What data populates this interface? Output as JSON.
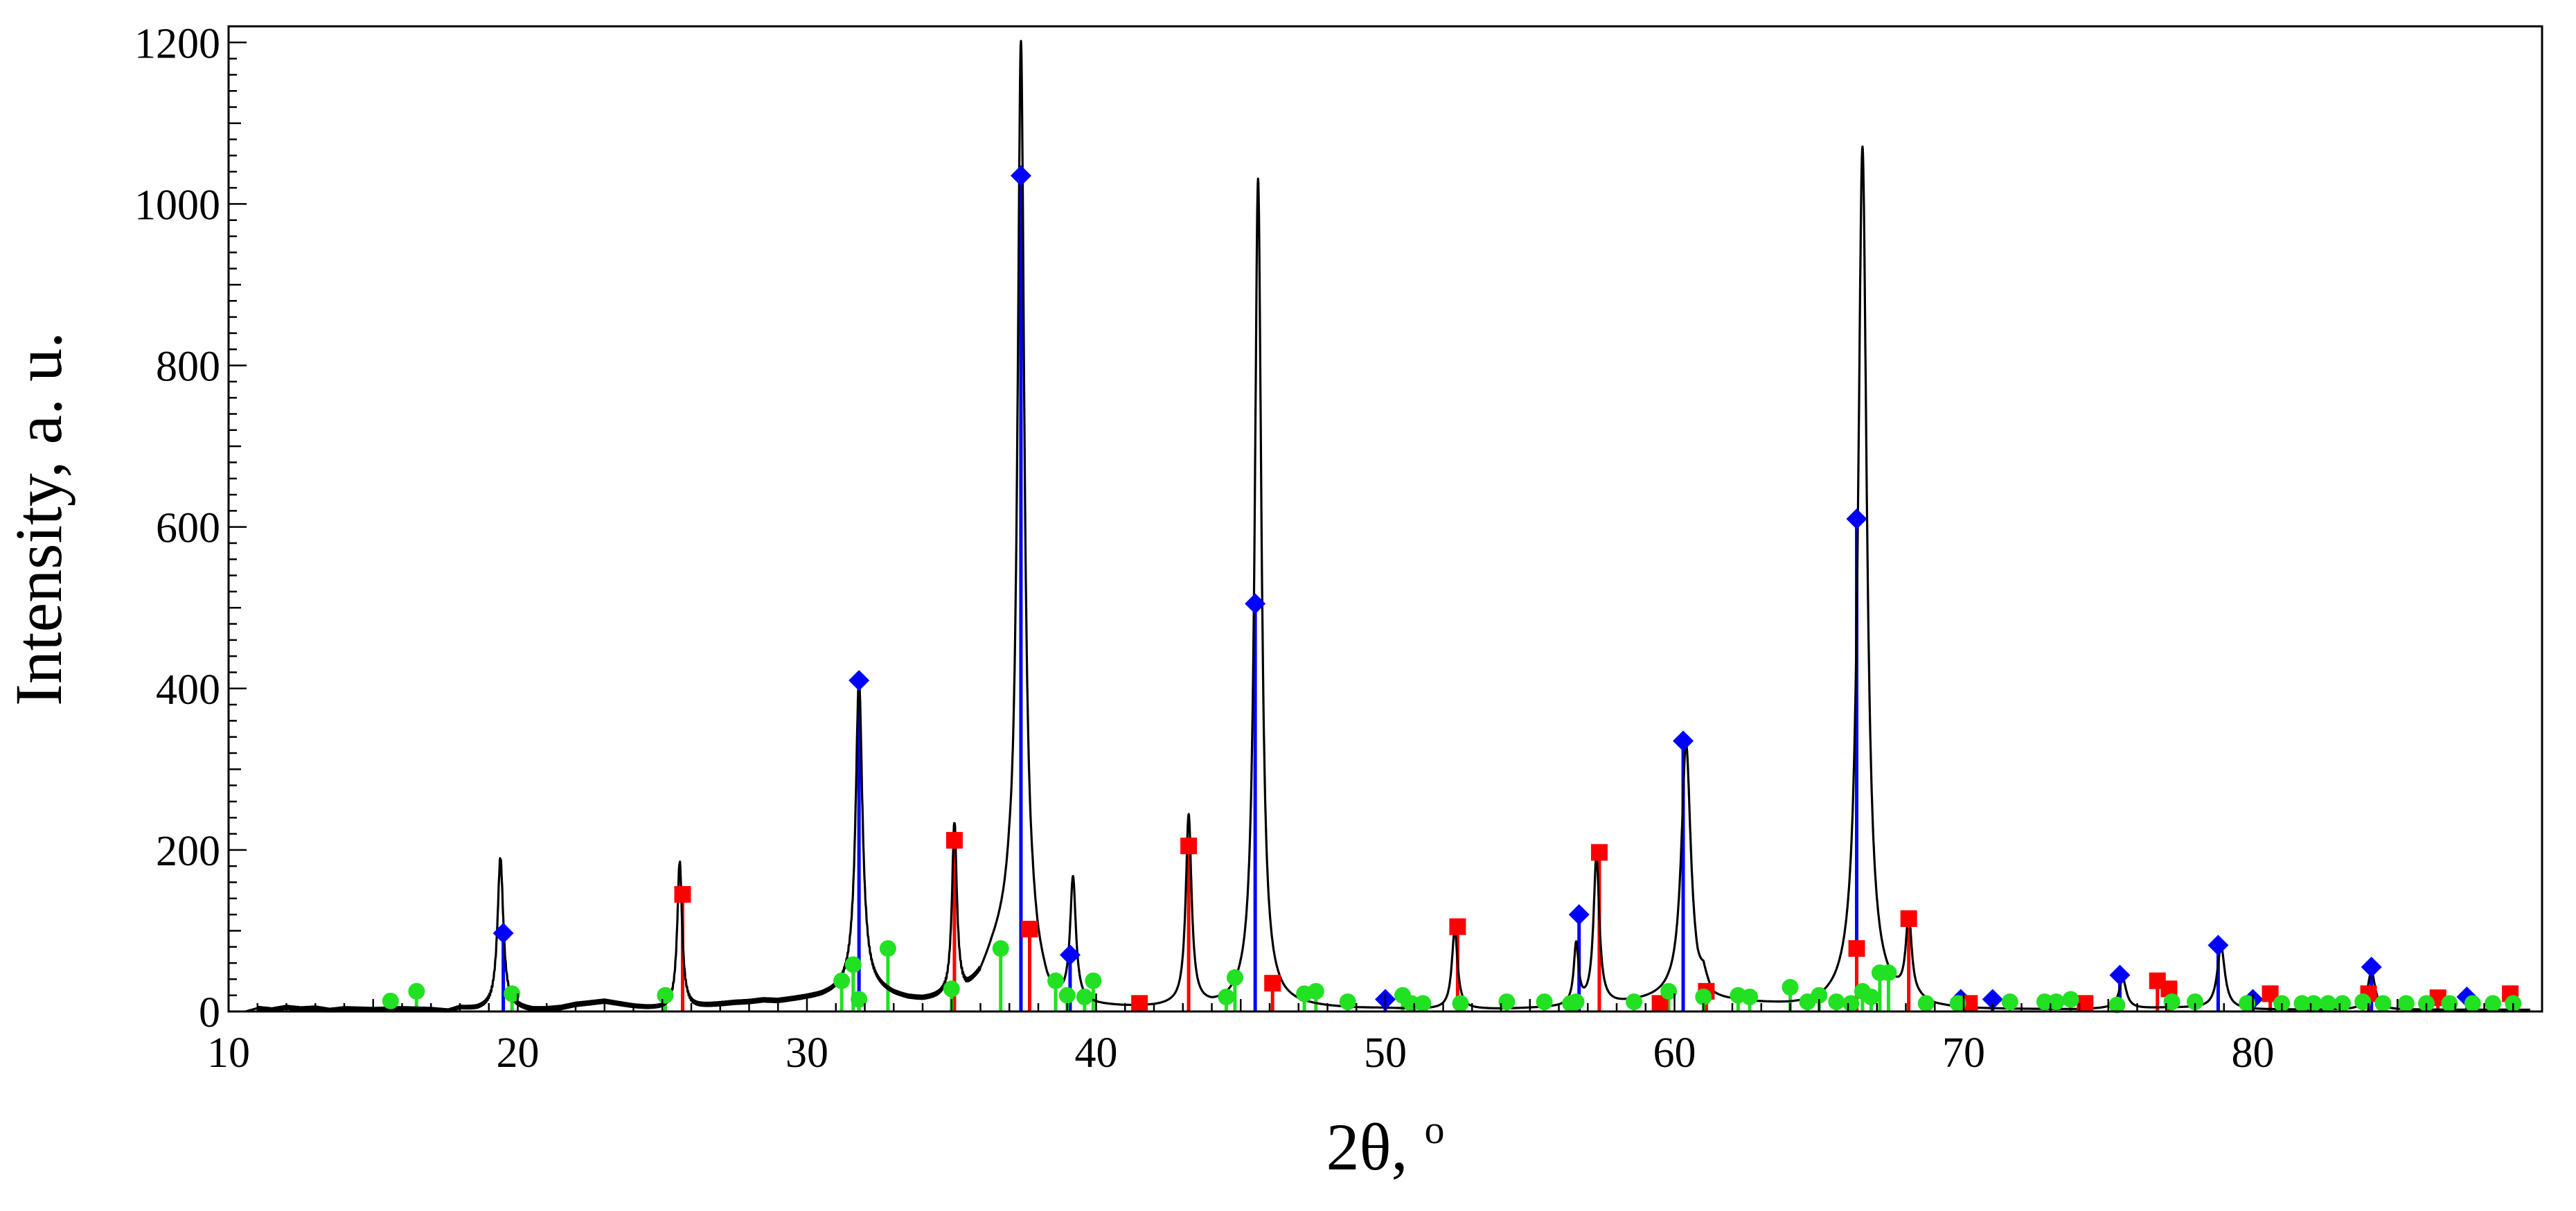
{
  "chart_data": {
    "type": "line",
    "title": "",
    "xlabel": "2θ, ",
    "xlabel_superscript": "o",
    "ylabel": "Intensity, a. u.",
    "xlim": [
      10,
      90
    ],
    "ylim": [
      0,
      1220
    ],
    "x_ticks": [
      10,
      20,
      30,
      40,
      50,
      60,
      70,
      80
    ],
    "y_ticks": [
      0,
      200,
      400,
      600,
      800,
      1000,
      1200
    ],
    "grid": false,
    "legend": "none",
    "series": [
      {
        "kind": "pattern",
        "color": "#000000",
        "baseline": [
          [
            10.6,
            0
          ],
          [
            11,
            4
          ],
          [
            11.5,
            2
          ],
          [
            12,
            5
          ],
          [
            12.5,
            3
          ],
          [
            13,
            4
          ],
          [
            13.5,
            1
          ],
          [
            14,
            3
          ],
          [
            15,
            2
          ],
          [
            16,
            3
          ],
          [
            17,
            2
          ],
          [
            17.6,
            0
          ],
          [
            18,
            4
          ],
          [
            18.6,
            2
          ],
          [
            19,
            3
          ],
          [
            20,
            3
          ],
          [
            20.5,
            1
          ],
          [
            21,
            2
          ],
          [
            21.5,
            4
          ],
          [
            22,
            8
          ],
          [
            22.5,
            10
          ],
          [
            23,
            12
          ],
          [
            23.5,
            9
          ],
          [
            24,
            6
          ],
          [
            24.5,
            4
          ],
          [
            25,
            3
          ],
          [
            26,
            4
          ],
          [
            26.5,
            6
          ],
          [
            27,
            8
          ],
          [
            27.5,
            10
          ],
          [
            28,
            11
          ],
          [
            28.5,
            13
          ],
          [
            29,
            12
          ],
          [
            29.5,
            14
          ],
          [
            30,
            16
          ],
          [
            30.5,
            18
          ],
          [
            31,
            22
          ],
          [
            31.5,
            28
          ],
          [
            32,
            30
          ],
          [
            32.5,
            24
          ],
          [
            33,
            18
          ],
          [
            33.5,
            14
          ],
          [
            34,
            12
          ],
          [
            34.5,
            13
          ],
          [
            35,
            14
          ],
          [
            35.5,
            20
          ],
          [
            36,
            40
          ],
          [
            36.4,
            70
          ],
          [
            36.8,
            95
          ],
          [
            37,
            110
          ],
          [
            37.8,
            70
          ],
          [
            38,
            45
          ],
          [
            38.3,
            20
          ],
          [
            38.5,
            10
          ],
          [
            39,
            8
          ],
          [
            39.5,
            6
          ],
          [
            40,
            5
          ],
          [
            41,
            4
          ],
          [
            42,
            4
          ],
          [
            42.6,
            5
          ],
          [
            43.6,
            5
          ],
          [
            44,
            4
          ],
          [
            44.5,
            6
          ],
          [
            45,
            10
          ],
          [
            46,
            12
          ],
          [
            46.5,
            8
          ],
          [
            47,
            6
          ],
          [
            48,
            4
          ],
          [
            49,
            3
          ],
          [
            50,
            3
          ],
          [
            51,
            2
          ],
          [
            52,
            2
          ],
          [
            53,
            2
          ],
          [
            54,
            2
          ],
          [
            55,
            3
          ],
          [
            56,
            4
          ],
          [
            57,
            6
          ],
          [
            58,
            8
          ],
          [
            59,
            12
          ],
          [
            59.8,
            16
          ],
          [
            60.8,
            14
          ],
          [
            61,
            30
          ],
          [
            61.3,
            10
          ],
          [
            62,
            10
          ],
          [
            63,
            8
          ],
          [
            64,
            6
          ],
          [
            65,
            6
          ],
          [
            65.5,
            10
          ],
          [
            66,
            16
          ],
          [
            67,
            18
          ],
          [
            67.5,
            12
          ],
          [
            68.5,
            8
          ],
          [
            69,
            4
          ],
          [
            70,
            2
          ],
          [
            71,
            2
          ],
          [
            72,
            2
          ],
          [
            73,
            2
          ],
          [
            74,
            2
          ],
          [
            75,
            3
          ],
          [
            76,
            3
          ],
          [
            77,
            4
          ],
          [
            78,
            4
          ],
          [
            79,
            3
          ],
          [
            80,
            2
          ],
          [
            81,
            2
          ],
          [
            82,
            2
          ],
          [
            83,
            2
          ],
          [
            84,
            2
          ],
          [
            85,
            2
          ],
          [
            86,
            2
          ],
          [
            87,
            2
          ],
          [
            88,
            2
          ],
          [
            89,
            2
          ]
        ],
        "peaks": [
          [
            19.4,
            190,
            0.12
          ],
          [
            25.6,
            185,
            0.1
          ],
          [
            31.8,
            410,
            0.14
          ],
          [
            35.1,
            230,
            0.1
          ],
          [
            37.4,
            1200,
            0.14
          ],
          [
            39.2,
            160,
            0.12
          ],
          [
            43.2,
            240,
            0.12
          ],
          [
            45.6,
            1030,
            0.14
          ],
          [
            52.4,
            100,
            0.12
          ],
          [
            56.6,
            80,
            0.1
          ],
          [
            57.3,
            190,
            0.12
          ],
          [
            60.4,
            330,
            0.2
          ],
          [
            66.5,
            1070,
            0.18
          ],
          [
            68.1,
            110,
            0.12
          ],
          [
            75.5,
            40,
            0.15
          ],
          [
            78.9,
            80,
            0.16
          ],
          [
            84.1,
            50,
            0.15
          ]
        ]
      }
    ],
    "reference_patterns": [
      {
        "marker": "diamond",
        "color": "#0000ff",
        "peaks": [
          [
            19.5,
            97
          ],
          [
            31.8,
            410
          ],
          [
            37.4,
            1035
          ],
          [
            39.1,
            70
          ],
          [
            45.5,
            505
          ],
          [
            50,
            15
          ],
          [
            56.7,
            120
          ],
          [
            60.3,
            335
          ],
          [
            66.3,
            610
          ],
          [
            69.9,
            15
          ],
          [
            71,
            15
          ],
          [
            75.4,
            45
          ],
          [
            78.8,
            82
          ],
          [
            80,
            15
          ],
          [
            84.1,
            55
          ],
          [
            87.4,
            18
          ]
        ]
      },
      {
        "marker": "square",
        "color": "#ff0000",
        "peaks": [
          [
            25.7,
            145
          ],
          [
            35.1,
            212
          ],
          [
            37.7,
            102
          ],
          [
            41.5,
            10
          ],
          [
            43.2,
            205
          ],
          [
            46.1,
            35
          ],
          [
            52.5,
            105
          ],
          [
            57.4,
            197
          ],
          [
            59.5,
            10
          ],
          [
            61.1,
            25
          ],
          [
            66.3,
            78
          ],
          [
            68.1,
            115
          ],
          [
            70.2,
            10
          ],
          [
            74.2,
            10
          ],
          [
            76.7,
            38
          ],
          [
            77.1,
            28
          ],
          [
            80.6,
            22
          ],
          [
            84,
            22
          ],
          [
            86.4,
            17
          ],
          [
            88.9,
            22
          ]
        ]
      },
      {
        "marker": "circle",
        "color": "#22e022",
        "peaks": [
          [
            15.6,
            13
          ],
          [
            16.5,
            25
          ],
          [
            19.8,
            22
          ],
          [
            25.1,
            20
          ],
          [
            31.2,
            38
          ],
          [
            31.6,
            58
          ],
          [
            31.8,
            15
          ],
          [
            32.8,
            78
          ],
          [
            35,
            28
          ],
          [
            36.7,
            78
          ],
          [
            38.6,
            38
          ],
          [
            39,
            20
          ],
          [
            39.6,
            18
          ],
          [
            39.9,
            38
          ],
          [
            44.5,
            18
          ],
          [
            44.8,
            42
          ],
          [
            47.2,
            22
          ],
          [
            47.6,
            25
          ],
          [
            48.7,
            12
          ],
          [
            50.6,
            20
          ],
          [
            50.9,
            10
          ],
          [
            51.3,
            10
          ],
          [
            52.6,
            10
          ],
          [
            54.2,
            12
          ],
          [
            55.5,
            12
          ],
          [
            56.4,
            10
          ],
          [
            56.6,
            12
          ],
          [
            58.6,
            12
          ],
          [
            59.8,
            25
          ],
          [
            61,
            18
          ],
          [
            62.2,
            20
          ],
          [
            62.6,
            18
          ],
          [
            64,
            30
          ],
          [
            64.6,
            12
          ],
          [
            65,
            20
          ],
          [
            65.6,
            12
          ],
          [
            66.1,
            10
          ],
          [
            66.5,
            25
          ],
          [
            66.8,
            18
          ],
          [
            67.1,
            48
          ],
          [
            67.4,
            48
          ],
          [
            68.7,
            10
          ],
          [
            69.8,
            10
          ],
          [
            71.6,
            12
          ],
          [
            72.8,
            12
          ],
          [
            73.2,
            12
          ],
          [
            73.7,
            15
          ],
          [
            75.3,
            8
          ],
          [
            77.2,
            12
          ],
          [
            78,
            12
          ],
          [
            79.8,
            10
          ],
          [
            81,
            10
          ],
          [
            81.7,
            10
          ],
          [
            82.1,
            10
          ],
          [
            82.6,
            10
          ],
          [
            83.1,
            10
          ],
          [
            83.8,
            12
          ],
          [
            84.5,
            10
          ],
          [
            85.3,
            10
          ],
          [
            86,
            10
          ],
          [
            86.8,
            10
          ],
          [
            87.6,
            10
          ],
          [
            88.3,
            10
          ],
          [
            89,
            10
          ]
        ]
      }
    ]
  }
}
